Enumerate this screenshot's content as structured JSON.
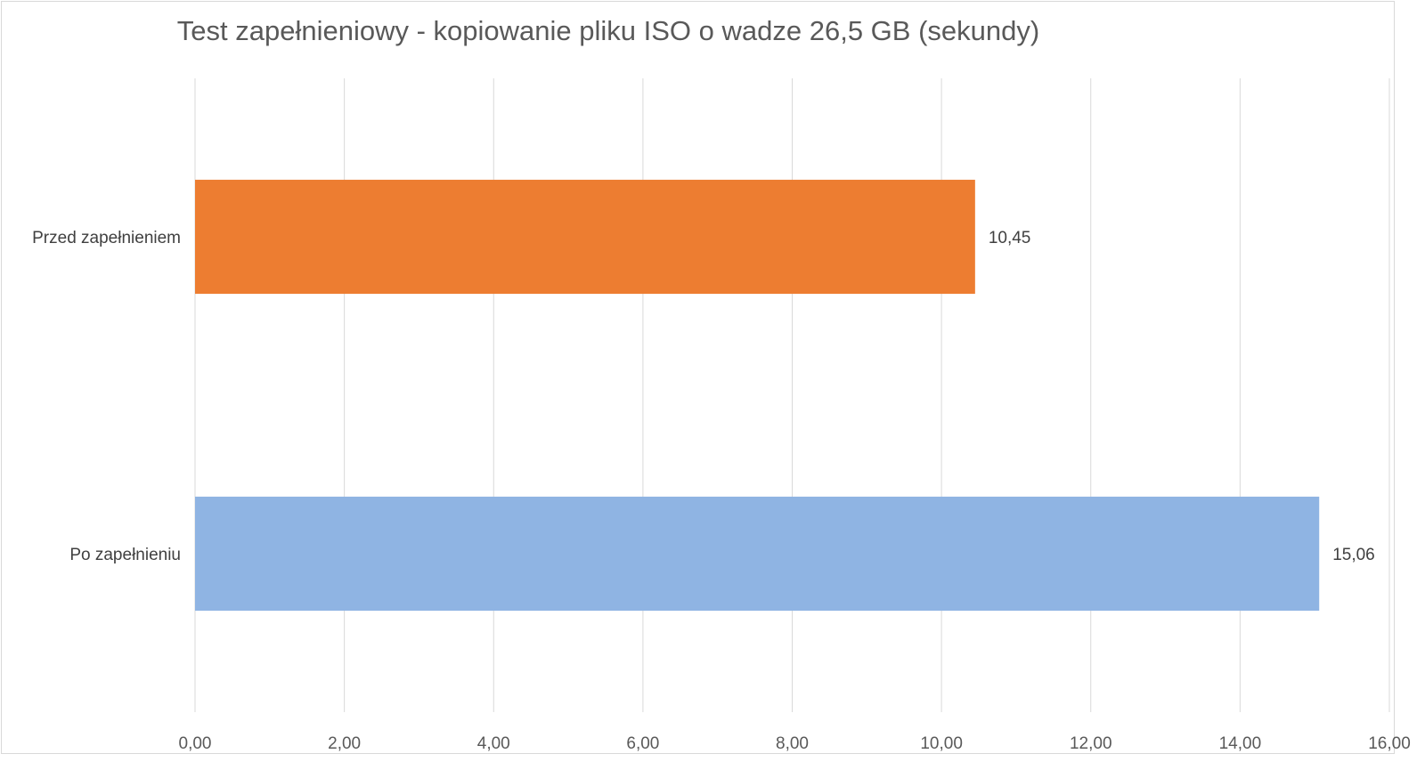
{
  "chart_data": {
    "type": "bar",
    "orientation": "horizontal",
    "title": "Test zapełnieniowy - kopiowanie pliku ISO o wadze 26,5 GB (sekundy)",
    "categories": [
      "Przed zapełnieniem",
      "Po zapełnieniu"
    ],
    "values": [
      10.45,
      15.06
    ],
    "value_labels": [
      "10,45",
      "15,06"
    ],
    "colors": [
      "#ed7d31",
      "#8fb4e3"
    ],
    "xlim": [
      0,
      16
    ],
    "x_ticks": [
      "0,00",
      "2,00",
      "4,00",
      "6,00",
      "8,00",
      "10,00",
      "12,00",
      "14,00",
      "16,00"
    ],
    "x_tick_values": [
      0,
      2,
      4,
      6,
      8,
      10,
      12,
      14,
      16
    ],
    "grid": true,
    "legend": "none"
  }
}
